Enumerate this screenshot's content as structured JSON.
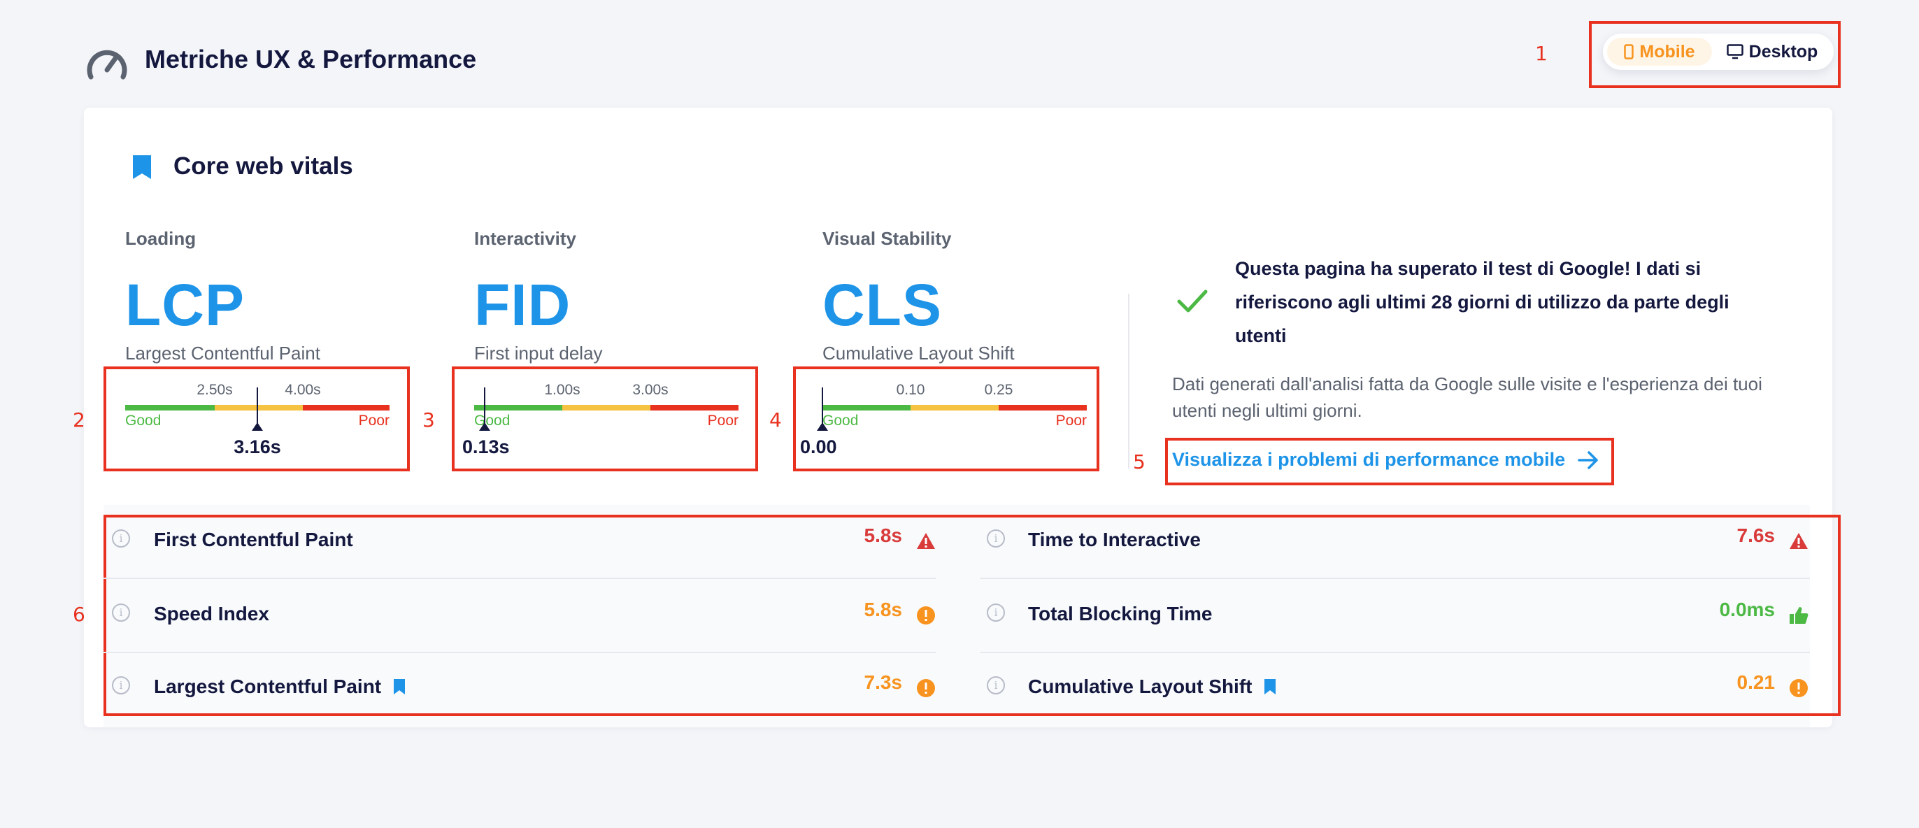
{
  "header": {
    "title": "Metriche UX & Performance",
    "icon": "speedometer-icon"
  },
  "device_toggle": {
    "mobile_label": "Mobile",
    "desktop_label": "Desktop",
    "selected": "Mobile"
  },
  "annotations": [
    "1",
    "2",
    "3",
    "4",
    "5",
    "6"
  ],
  "core_web_vitals": {
    "title": "Core web vitals",
    "metrics": [
      {
        "category": "Loading",
        "code": "LCP",
        "name": "Largest Contentful Paint",
        "threshold_low": "2.50s",
        "threshold_high": "4.00s",
        "good_label": "Good",
        "poor_label": "Poor",
        "value": "3.16s",
        "position": 0.5
      },
      {
        "category": "Interactivity",
        "code": "FID",
        "name": "First input delay",
        "threshold_low": "1.00s",
        "threshold_high": "3.00s",
        "good_label": "Good",
        "poor_label": "Poor",
        "value": "0.13s",
        "position": 0.04
      },
      {
        "category": "Visual Stability",
        "code": "CLS",
        "name": "Cumulative Layout Shift",
        "threshold_low": "0.10",
        "threshold_high": "0.25",
        "good_label": "Good",
        "poor_label": "Poor",
        "value": "0.00",
        "position": 0.0
      }
    ],
    "pass_message": "Questa pagina ha superato il test di Google! I dati si riferiscono agli ultimi 28 giorni di utilizzo da parte degli utenti",
    "description": "Dati generati dall'analisi fatta da Google sulle visite e l'esperienza dei tuoi utenti negli ultimi giorni.",
    "link_label": "Visualizza i problemi di performance mobile"
  },
  "colors": {
    "good": "#4cb944",
    "average": "#f5c242",
    "poor": "#e8311f",
    "accent": "#1e94e8",
    "orange": "#f7931e",
    "red": "#d93a3a"
  },
  "metrics_table": {
    "left": [
      {
        "name": "First Contentful Paint",
        "value": "5.8s",
        "status": "poor",
        "core": false
      },
      {
        "name": "Speed Index",
        "value": "5.8s",
        "status": "average",
        "core": false
      },
      {
        "name": "Largest Contentful Paint",
        "value": "7.3s",
        "status": "average",
        "core": true
      }
    ],
    "right": [
      {
        "name": "Time to Interactive",
        "value": "7.6s",
        "status": "poor",
        "core": false
      },
      {
        "name": "Total Blocking Time",
        "value": "0.0ms",
        "status": "good",
        "core": false
      },
      {
        "name": "Cumulative Layout Shift",
        "value": "0.21",
        "status": "average",
        "core": true
      }
    ]
  }
}
